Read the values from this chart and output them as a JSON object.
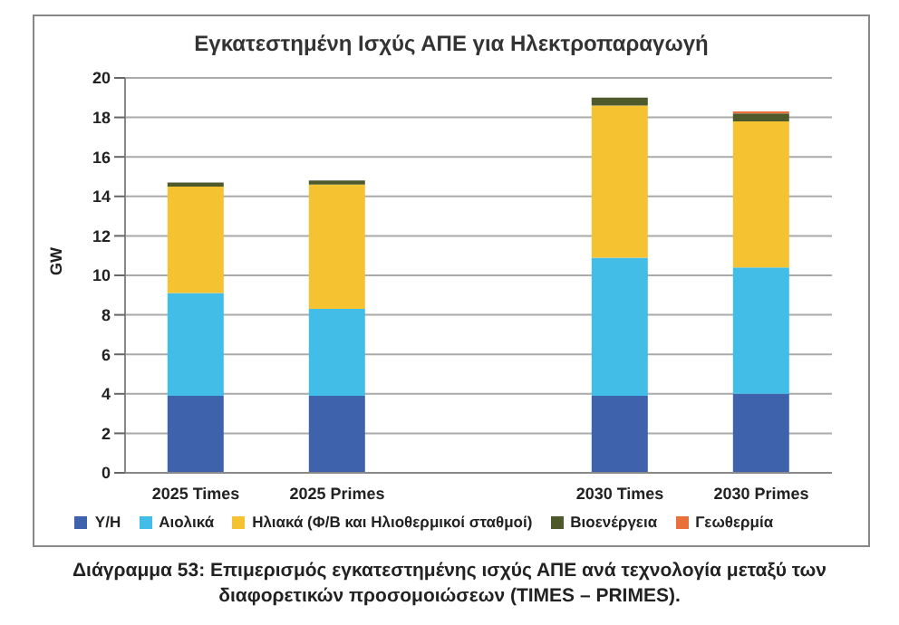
{
  "chart_data": {
    "type": "bar",
    "title": "Εγκατεστημένη Ισχύς ΑΠΕ για Ηλεκτροπαραγωγή",
    "ylabel": "GW",
    "categories": [
      "2025 Times",
      "2025 Primes",
      null,
      "2030 Times",
      "2030 Primes"
    ],
    "stacked": true,
    "series": [
      {
        "name": "Υ/Η",
        "color": "#3f62ad",
        "values": [
          3.9,
          3.9,
          null,
          3.9,
          4.0
        ]
      },
      {
        "name": "Αιολικά",
        "color": "#41bde8",
        "values": [
          5.2,
          4.4,
          null,
          7.0,
          6.4
        ]
      },
      {
        "name": "Ηλιακά (Φ/Β και Ηλιοθερμικοί σταθμοί)",
        "color": "#f5c232",
        "values": [
          5.4,
          6.3,
          null,
          7.7,
          7.4
        ]
      },
      {
        "name": "Βιοενέργεια",
        "color": "#4e5a2c",
        "values": [
          0.2,
          0.2,
          null,
          0.4,
          0.4
        ]
      },
      {
        "name": "Γεωθερμία",
        "color": "#e8703a",
        "values": [
          0,
          0,
          null,
          0,
          0.1
        ]
      }
    ],
    "ylim": [
      0,
      20
    ],
    "yticks": [
      0,
      2,
      4,
      6,
      8,
      10,
      12,
      14,
      16,
      18,
      20
    ],
    "grid": "y",
    "legend": "bottom",
    "annotations": [
      "Διάγραμμα 53: Επιμερισμός εγκατεστημένης ισχύς ΑΠΕ ανά τεχνολογία μεταξύ των διαφορετικών προσομοιώσεων (TIMES – PRIMES)."
    ]
  }
}
